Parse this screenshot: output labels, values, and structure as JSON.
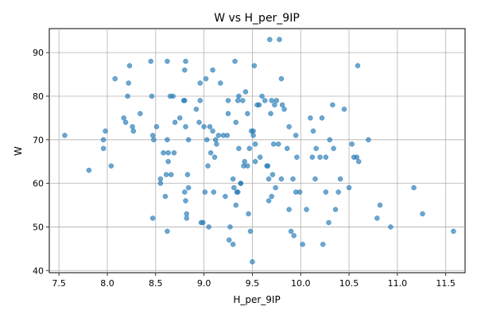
{
  "chart_data": {
    "type": "scatter",
    "title": "W vs H_per_9IP",
    "xlabel": "H_per_9IP",
    "ylabel": "W",
    "xlim": [
      7.4,
      11.7
    ],
    "ylim": [
      39.5,
      95.5
    ],
    "xticks": [
      "7.5",
      "8.0",
      "8.5",
      "9.0",
      "9.5",
      "10.0",
      "10.5",
      "11.0",
      "11.5"
    ],
    "yticks": [
      "40",
      "50",
      "60",
      "70",
      "80",
      "90"
    ],
    "grid": true,
    "point_color": "#1f77b4",
    "points": [
      [
        7.56,
        71
      ],
      [
        7.81,
        63
      ],
      [
        7.96,
        68
      ],
      [
        7.96,
        70
      ],
      [
        7.98,
        72
      ],
      [
        8.04,
        64
      ],
      [
        8.08,
        84
      ],
      [
        8.17,
        75
      ],
      [
        8.19,
        74
      ],
      [
        8.21,
        80
      ],
      [
        8.22,
        83
      ],
      [
        8.23,
        87
      ],
      [
        8.26,
        73
      ],
      [
        8.27,
        72
      ],
      [
        8.34,
        76
      ],
      [
        8.45,
        88
      ],
      [
        8.46,
        80
      ],
      [
        8.47,
        71
      ],
      [
        8.48,
        70
      ],
      [
        8.47,
        52
      ],
      [
        8.51,
        73
      ],
      [
        8.55,
        61
      ],
      [
        8.55,
        60
      ],
      [
        8.58,
        67
      ],
      [
        8.6,
        57
      ],
      [
        8.61,
        62
      ],
      [
        8.62,
        88
      ],
      [
        8.62,
        70
      ],
      [
        8.63,
        67
      ],
      [
        8.62,
        49
      ],
      [
        8.63,
        65
      ],
      [
        8.65,
        80
      ],
      [
        8.66,
        62
      ],
      [
        8.68,
        80
      ],
      [
        8.69,
        67
      ],
      [
        8.7,
        74
      ],
      [
        8.75,
        75
      ],
      [
        8.79,
        79
      ],
      [
        8.8,
        79
      ],
      [
        8.8,
        86
      ],
      [
        8.81,
        88
      ],
      [
        8.81,
        73
      ],
      [
        8.8,
        58
      ],
      [
        8.81,
        56
      ],
      [
        8.82,
        53
      ],
      [
        8.82,
        52
      ],
      [
        8.83,
        62
      ],
      [
        8.84,
        70
      ],
      [
        8.84,
        59
      ],
      [
        8.92,
        77
      ],
      [
        8.96,
        83
      ],
      [
        8.96,
        79
      ],
      [
        8.95,
        74
      ],
      [
        8.97,
        51
      ],
      [
        8.99,
        51
      ],
      [
        9.0,
        73
      ],
      [
        9.01,
        58
      ],
      [
        9.02,
        84
      ],
      [
        9.03,
        70
      ],
      [
        9.04,
        64
      ],
      [
        9.05,
        50
      ],
      [
        9.06,
        73
      ],
      [
        9.07,
        67
      ],
      [
        9.09,
        86
      ],
      [
        9.09,
        72
      ],
      [
        9.1,
        58
      ],
      [
        9.12,
        70
      ],
      [
        9.11,
        66
      ],
      [
        9.13,
        69
      ],
      [
        9.15,
        71
      ],
      [
        9.17,
        83
      ],
      [
        9.2,
        71
      ],
      [
        9.22,
        57
      ],
      [
        9.24,
        71
      ],
      [
        9.25,
        79
      ],
      [
        9.25,
        76
      ],
      [
        9.26,
        47
      ],
      [
        9.27,
        50
      ],
      [
        9.3,
        61
      ],
      [
        9.3,
        46
      ],
      [
        9.31,
        59
      ],
      [
        9.32,
        88
      ],
      [
        9.33,
        74
      ],
      [
        9.34,
        58
      ],
      [
        9.33,
        55
      ],
      [
        9.35,
        79
      ],
      [
        9.35,
        58
      ],
      [
        9.36,
        80
      ],
      [
        9.36,
        68
      ],
      [
        9.38,
        60
      ],
      [
        9.38,
        60
      ],
      [
        9.4,
        79
      ],
      [
        9.41,
        64
      ],
      [
        9.42,
        65
      ],
      [
        9.43,
        81
      ],
      [
        9.45,
        76
      ],
      [
        9.45,
        64
      ],
      [
        9.46,
        53
      ],
      [
        9.47,
        68
      ],
      [
        9.48,
        49
      ],
      [
        9.49,
        72
      ],
      [
        9.5,
        42
      ],
      [
        9.51,
        72
      ],
      [
        9.51,
        71
      ],
      [
        9.52,
        87
      ],
      [
        9.53,
        65
      ],
      [
        9.53,
        69
      ],
      [
        9.55,
        78
      ],
      [
        9.57,
        78
      ],
      [
        9.58,
        66
      ],
      [
        9.6,
        80
      ],
      [
        9.63,
        79
      ],
      [
        9.65,
        64
      ],
      [
        9.66,
        64
      ],
      [
        9.67,
        56
      ],
      [
        9.67,
        61
      ],
      [
        9.68,
        93
      ],
      [
        9.69,
        76
      ],
      [
        9.7,
        57
      ],
      [
        9.7,
        79
      ],
      [
        9.71,
        62
      ],
      [
        9.72,
        69
      ],
      [
        9.73,
        78
      ],
      [
        9.74,
        59
      ],
      [
        9.75,
        79
      ],
      [
        9.77,
        69
      ],
      [
        9.78,
        93
      ],
      [
        9.8,
        61
      ],
      [
        9.8,
        84
      ],
      [
        9.81,
        78
      ],
      [
        9.83,
        77
      ],
      [
        9.86,
        68
      ],
      [
        9.88,
        54
      ],
      [
        9.88,
        73
      ],
      [
        9.9,
        49
      ],
      [
        9.92,
        61
      ],
      [
        9.93,
        48
      ],
      [
        9.95,
        71
      ],
      [
        9.95,
        58
      ],
      [
        9.96,
        66
      ],
      [
        9.99,
        58
      ],
      [
        10.02,
        46
      ],
      [
        10.06,
        54
      ],
      [
        10.1,
        75
      ],
      [
        10.12,
        66
      ],
      [
        10.13,
        72
      ],
      [
        10.15,
        61
      ],
      [
        10.16,
        68
      ],
      [
        10.2,
        66
      ],
      [
        10.22,
        75
      ],
      [
        10.23,
        46
      ],
      [
        10.26,
        58
      ],
      [
        10.26,
        66
      ],
      [
        10.29,
        51
      ],
      [
        10.3,
        70
      ],
      [
        10.33,
        78
      ],
      [
        10.34,
        68
      ],
      [
        10.36,
        54
      ],
      [
        10.39,
        58
      ],
      [
        10.41,
        61
      ],
      [
        10.45,
        77
      ],
      [
        10.5,
        59
      ],
      [
        10.53,
        69
      ],
      [
        10.55,
        66
      ],
      [
        10.58,
        66
      ],
      [
        10.6,
        65
      ],
      [
        10.59,
        87
      ],
      [
        10.7,
        70
      ],
      [
        10.79,
        52
      ],
      [
        10.82,
        55
      ],
      [
        10.93,
        50
      ],
      [
        11.17,
        59
      ],
      [
        11.26,
        53
      ],
      [
        11.58,
        49
      ]
    ]
  }
}
